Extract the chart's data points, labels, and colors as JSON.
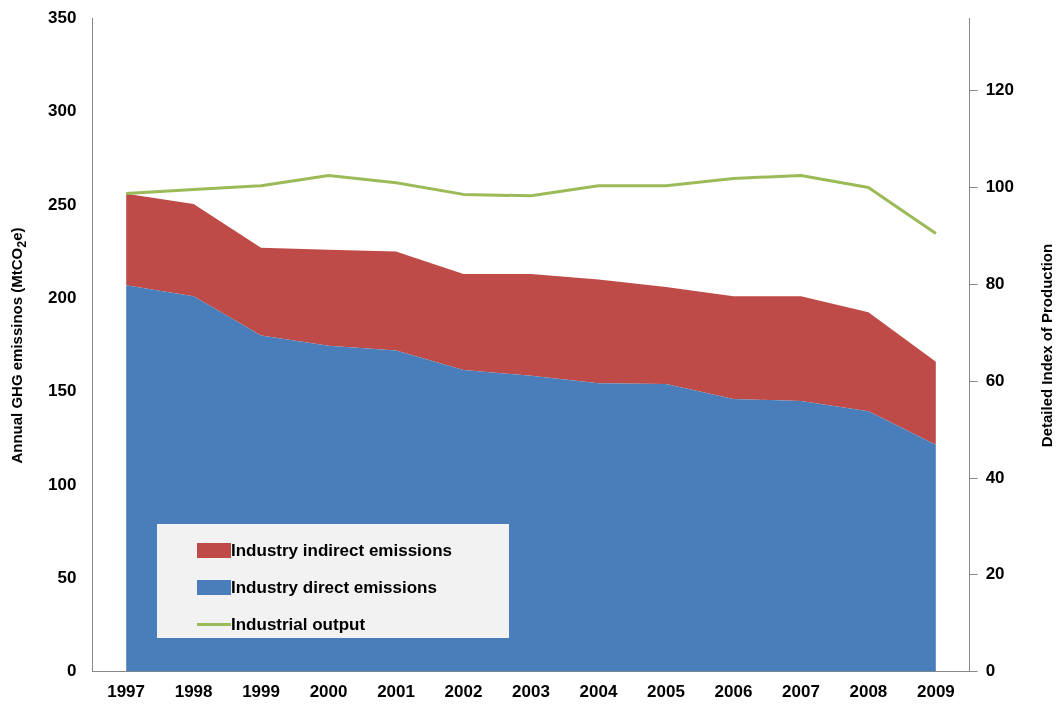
{
  "chart_data": {
    "type": "area",
    "stacked": true,
    "categories": [
      "1997",
      "1998",
      "1999",
      "2000",
      "2001",
      "2002",
      "2003",
      "2004",
      "2005",
      "2006",
      "2007",
      "2008",
      "2009"
    ],
    "series": [
      {
        "name": "Industry direct emissions",
        "color": "#4a7ebb",
        "values": [
          207,
          201,
          180,
          174.5,
          172,
          161.5,
          158.5,
          154.5,
          154,
          146,
          145,
          139.5,
          121.5
        ]
      },
      {
        "name": "Industry indirect emissions",
        "color": "#be4b48",
        "values": [
          49,
          49.5,
          47,
          51.5,
          53,
          51.5,
          54.5,
          55.5,
          52,
          55,
          56,
          53,
          44.5
        ]
      },
      {
        "name": "Industrial output",
        "type": "line",
        "axis": "y2",
        "color": "#9bbb59",
        "values": [
          98.8,
          99.6,
          100.4,
          102.5,
          101,
          98.6,
          98.3,
          100.4,
          100.4,
          101.9,
          102.5,
          100,
          90.5
        ]
      }
    ],
    "ylim": [
      0,
      350
    ],
    "yticks": [
      0,
      50,
      100,
      150,
      200,
      250,
      300,
      350
    ],
    "y2lim": [
      0,
      135
    ],
    "y2ticks": [
      0,
      20,
      40,
      60,
      80,
      100,
      120
    ],
    "ylabel": "Annual GHG emissinos (MtCO$_{2}$e)",
    "y2label": "Detailed Index of Production",
    "grid": false,
    "legend": "bottom left",
    "marker": "none"
  }
}
